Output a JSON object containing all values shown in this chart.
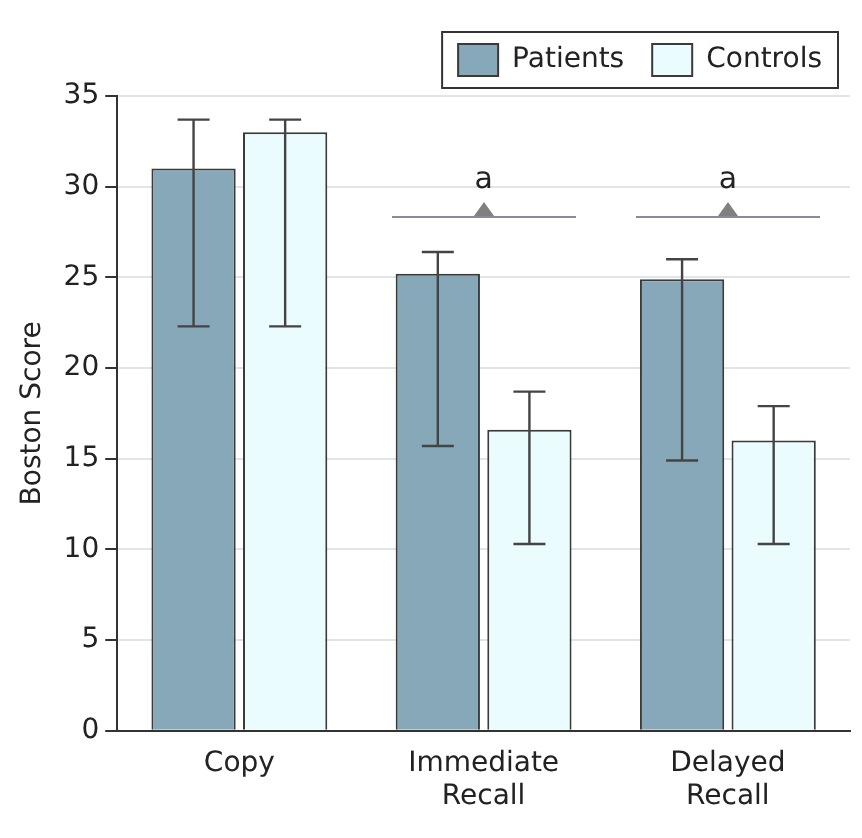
{
  "chart_data": {
    "type": "bar",
    "ylabel": "Boston Score",
    "categories": [
      "Copy",
      "Immediate Recall",
      "Delayed Recall"
    ],
    "series": [
      {
        "name": "Patients",
        "color": "#87a8b8",
        "values": [
          31,
          25.2,
          24.9
        ],
        "errors": [
          [
            22.3,
            33.7
          ],
          [
            15.7,
            26.4
          ],
          [
            14.9,
            26.0
          ]
        ]
      },
      {
        "name": "Controls",
        "color": "#eafcfd",
        "values": [
          33,
          16.6,
          16.0
        ],
        "errors": [
          [
            22.3,
            33.7
          ],
          [
            10.3,
            18.7
          ],
          [
            10.3,
            17.9
          ]
        ]
      }
    ],
    "ylim": [
      0,
      35
    ],
    "yticks": [
      0,
      5,
      10,
      15,
      20,
      25,
      30,
      35
    ],
    "grid": "y",
    "legend": "top right",
    "annotations": [
      "a",
      "a"
    ]
  }
}
